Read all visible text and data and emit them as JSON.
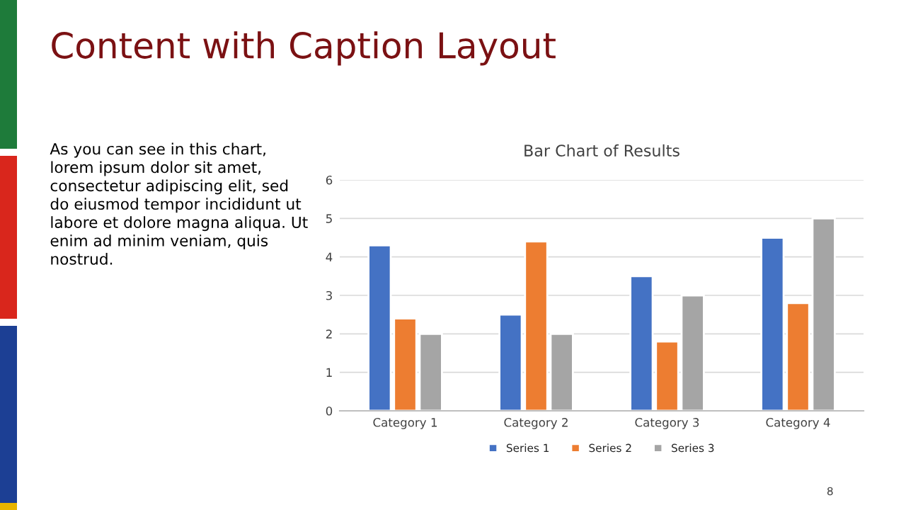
{
  "chart_data": {
    "type": "bar",
    "title": "Bar Chart of Results",
    "categories": [
      "Category 1",
      "Category 2",
      "Category 3",
      "Category 4"
    ],
    "series": [
      {
        "name": "Series 1",
        "color": "#4472c4",
        "values": [
          4.3,
          2.5,
          3.5,
          4.5
        ]
      },
      {
        "name": "Series 2",
        "color": "#ed7d31",
        "values": [
          2.4,
          4.4,
          1.8,
          2.8
        ]
      },
      {
        "name": "Series 3",
        "color": "#a5a5a5",
        "values": [
          2,
          2,
          3,
          5
        ]
      }
    ],
    "ylim": [
      0,
      6
    ],
    "yticks": [
      0,
      1,
      2,
      3,
      4,
      5,
      6
    ],
    "grid": "y",
    "legend": "bottom",
    "annotations": [
      "Content with Caption Layout",
      "As you can see in this chart,\nlorem ipsum dolor sit amet,\nconsectetur adipiscing elit, sed\ndo eiusmod tempor incididunt ut\nlabore et dolore magna aliqua. Ut\nenim ad minim veniam, quis\nnostrud.",
      "8"
    ]
  }
}
